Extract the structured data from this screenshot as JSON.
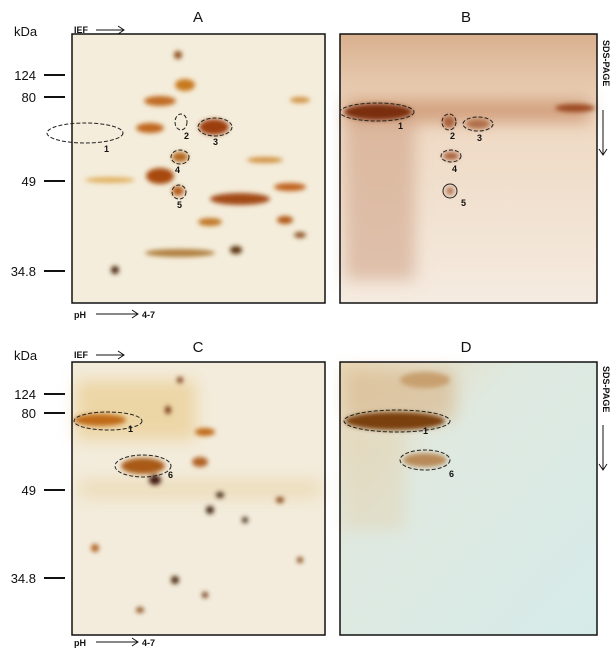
{
  "rows": [
    {
      "unit": "kDa",
      "markers": [
        "124",
        "80",
        "49",
        "34.8"
      ],
      "ief": "IEF",
      "sds": "SDS-PAGE",
      "ph": "pH",
      "ph_range": "4-7",
      "panels": [
        {
          "label": "A",
          "spots": [
            "1",
            "2",
            "3",
            "4",
            "5"
          ]
        },
        {
          "label": "B",
          "spots": [
            "1",
            "2",
            "3",
            "4",
            "5"
          ]
        }
      ]
    },
    {
      "unit": "kDa",
      "markers": [
        "124",
        "80",
        "49",
        "34.8"
      ],
      "ief": "IEF",
      "sds": "SDS-PAGE",
      "ph": "pH",
      "ph_range": "4-7",
      "panels": [
        {
          "label": "C",
          "spots": [
            "1",
            "6"
          ]
        },
        {
          "label": "D",
          "spots": [
            "1",
            "6"
          ]
        }
      ]
    }
  ]
}
